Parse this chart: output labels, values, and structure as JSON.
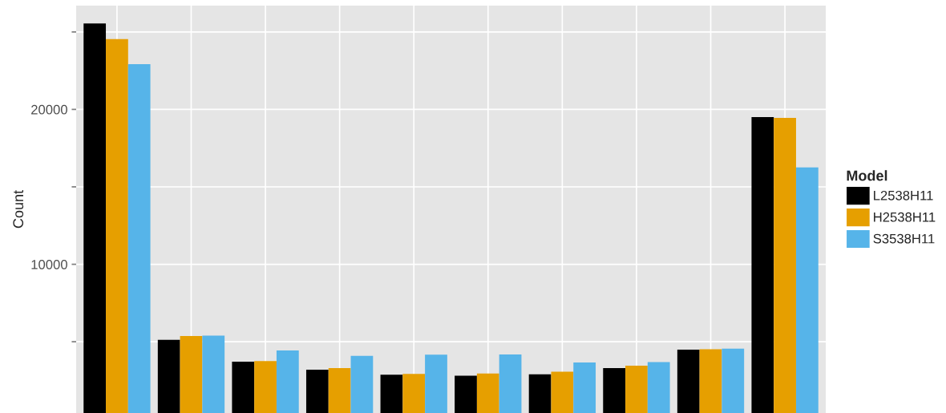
{
  "chart_data": {
    "type": "bar",
    "categories": [
      null,
      null,
      null,
      null,
      null,
      null,
      null,
      null,
      null,
      null
    ],
    "series": [
      {
        "name": "L2538H11",
        "color": "#000000",
        "values": [
          25550,
          5130,
          3710,
          3200,
          2870,
          2810,
          2900,
          3300,
          4490,
          19500
        ]
      },
      {
        "name": "H2538H11",
        "color": "#e69f00",
        "values": [
          24540,
          5370,
          3750,
          3300,
          2920,
          2950,
          3070,
          3450,
          4520,
          19450
        ]
      },
      {
        "name": "S3538H11",
        "color": "#56b4e9",
        "values": [
          22920,
          5400,
          4440,
          4090,
          4160,
          4180,
          3660,
          3690,
          4560,
          16250
        ]
      }
    ],
    "ylabel": "Count",
    "legend_title": "Model",
    "legend": "right",
    "ylim": [
      400,
      26700
    ],
    "yticks": [
      {
        "value": 5000,
        "label": null
      },
      10000,
      {
        "value": 15000,
        "label": null
      },
      20000,
      {
        "value": 25000,
        "label": null
      }
    ],
    "grid": true
  }
}
